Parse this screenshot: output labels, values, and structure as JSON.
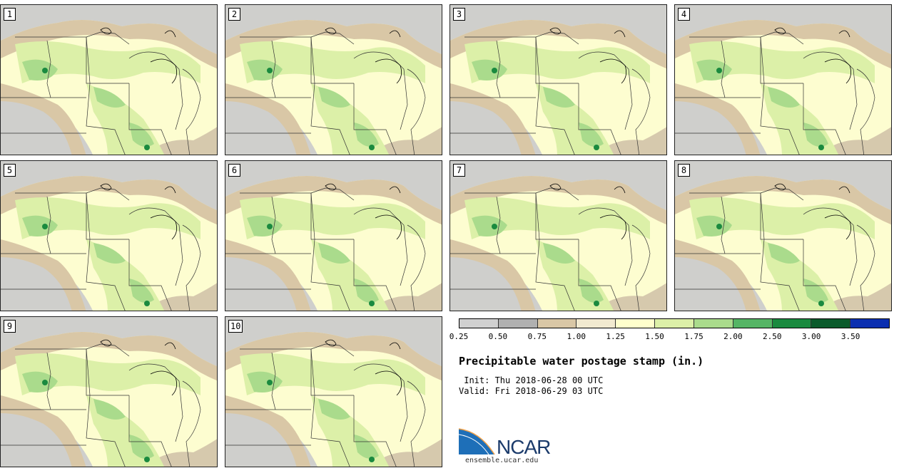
{
  "panels": [
    {
      "label": "1"
    },
    {
      "label": "2"
    },
    {
      "label": "3"
    },
    {
      "label": "4"
    },
    {
      "label": "5"
    },
    {
      "label": "6"
    },
    {
      "label": "7"
    },
    {
      "label": "8"
    },
    {
      "label": "9"
    },
    {
      "label": "10"
    }
  ],
  "colorbar": {
    "ticks": [
      "0.25",
      "0.50",
      "0.75",
      "1.00",
      "1.25",
      "1.50",
      "1.75",
      "2.00",
      "2.50",
      "3.00",
      "3.50"
    ],
    "colors": [
      "#d0d0d0",
      "#b0b0b0",
      "#d9c7a6",
      "#f2ead0",
      "#ffffcc",
      "#dcf0a8",
      "#aadb8c",
      "#55b565",
      "#1a8a3f",
      "#0a5a2b",
      "#0b2fb0"
    ]
  },
  "title": "Precipitable water postage stamp (in.)",
  "init": " Init: Thu 2018-06-28 00 UTC",
  "valid": "Valid: Fri 2018-06-29 03 UTC",
  "logo": {
    "text": "NCAR",
    "site": "ensemble.ucar.edu"
  }
}
